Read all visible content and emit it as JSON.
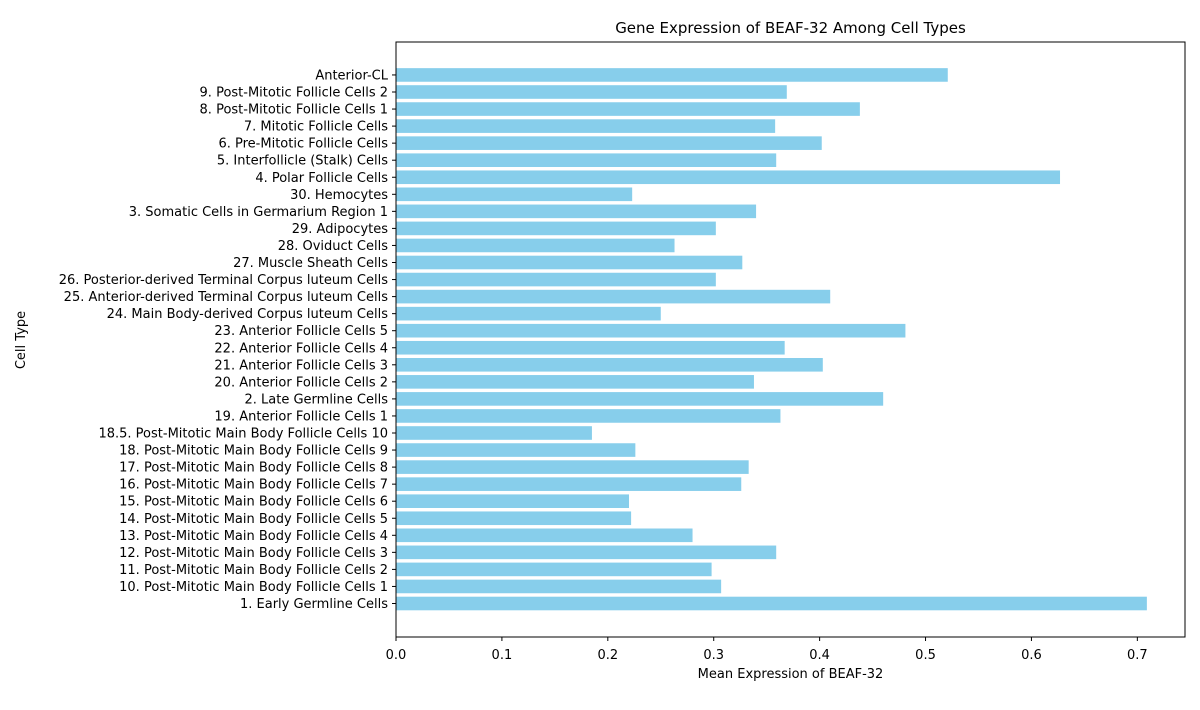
{
  "chart_data": {
    "type": "bar",
    "orientation": "horizontal",
    "title": "Gene Expression of BEAF-32 Among Cell Types",
    "xlabel": "Mean Expression of BEAF-32",
    "ylabel": "Cell Type",
    "xlim": [
      0,
      0.745
    ],
    "x_ticks": [
      "0.0",
      "0.1",
      "0.2",
      "0.3",
      "0.4",
      "0.5",
      "0.6",
      "0.7"
    ],
    "grid": false,
    "bar_color": "#87CEEB",
    "categories": [
      "1. Early Germline Cells",
      "10. Post-Mitotic Main Body Follicle Cells 1",
      "11. Post-Mitotic Main Body Follicle Cells 2",
      "12. Post-Mitotic Main Body Follicle Cells 3",
      "13. Post-Mitotic Main Body Follicle Cells 4",
      "14. Post-Mitotic Main Body Follicle Cells 5",
      "15. Post-Mitotic Main Body Follicle Cells 6",
      "16. Post-Mitotic Main Body Follicle Cells 7",
      "17. Post-Mitotic Main Body Follicle Cells 8",
      "18. Post-Mitotic Main Body Follicle Cells 9",
      "18.5. Post-Mitotic Main Body Follicle Cells 10",
      "19. Anterior Follicle Cells 1",
      "2. Late Germline Cells",
      "20. Anterior Follicle Cells 2",
      "21. Anterior Follicle Cells 3",
      "22. Anterior Follicle Cells 4",
      "23. Anterior Follicle Cells 5",
      "24. Main Body-derived Corpus luteum Cells",
      "25. Anterior-derived Terminal Corpus luteum Cells",
      "26. Posterior-derived Terminal Corpus luteum Cells",
      "27. Muscle Sheath Cells",
      "28. Oviduct Cells",
      "29. Adipocytes",
      "3. Somatic Cells in Germarium Region 1",
      "30. Hemocytes",
      "4. Polar Follicle Cells",
      "5. Interfollicle (Stalk) Cells",
      "6. Pre-Mitotic Follicle Cells",
      "7. Mitotic Follicle Cells",
      "8. Post-Mitotic Follicle Cells 1",
      "9. Post-Mitotic Follicle Cells 2",
      "Anterior-CL"
    ],
    "values": [
      0.709,
      0.307,
      0.298,
      0.359,
      0.28,
      0.222,
      0.22,
      0.326,
      0.333,
      0.226,
      0.185,
      0.363,
      0.46,
      0.338,
      0.403,
      0.367,
      0.481,
      0.25,
      0.41,
      0.302,
      0.327,
      0.263,
      0.302,
      0.34,
      0.223,
      0.627,
      0.359,
      0.402,
      0.358,
      0.438,
      0.369,
      0.521
    ]
  }
}
